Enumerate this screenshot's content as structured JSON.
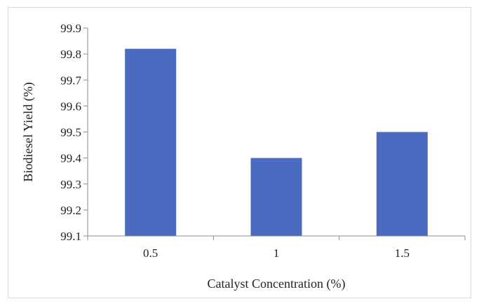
{
  "chart_data": {
    "type": "bar",
    "categories": [
      "0.5",
      "1",
      "1.5"
    ],
    "values": [
      99.82,
      99.4,
      99.5
    ],
    "xlabel": "Catalyst Concentration (%)",
    "ylabel": "Biodiesel Yield (%)",
    "ylim": [
      99.1,
      99.9
    ],
    "yticks": [
      "99.1",
      "99.2",
      "99.3",
      "99.4",
      "99.5",
      "99.6",
      "99.7",
      "99.8",
      "99.9"
    ],
    "grid": false,
    "legend": "none",
    "bar_color": "#4a6bc0",
    "axis_color": "#8c8c8c"
  }
}
